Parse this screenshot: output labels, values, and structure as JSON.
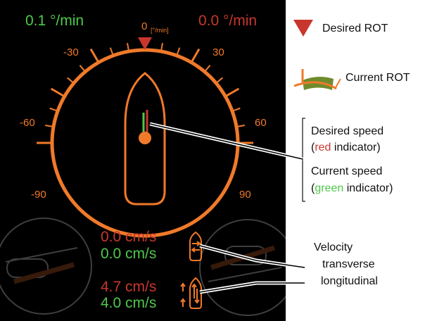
{
  "rot": {
    "current_value": "0.1 °/min",
    "desired_value": "0.0 °/min",
    "zero_label": "0",
    "unit_label": "[°/min]",
    "scale_labels": {
      "m30": "-30",
      "p30": "30",
      "m60": "-60",
      "p60": "60",
      "m90": "-90",
      "p90": "90"
    }
  },
  "velocity": {
    "transverse_desired": "0.0 cm/s",
    "transverse_current": "0.0 cm/s",
    "longitudinal_desired": "4.7 cm/s",
    "longitudinal_current": "4.0 cm/s"
  },
  "legend": {
    "desired_rot": "Desired ROT",
    "current_rot": "Current ROT",
    "desired_speed_line1": "Desired speed",
    "desired_speed_line2_pre": "(",
    "desired_speed_line2_color": "red",
    "desired_speed_line2_post": " indicator)",
    "current_speed_line1": "Current speed",
    "current_speed_line2_pre": "(",
    "current_speed_line2_color": "green",
    "current_speed_line2_post": " indicator)",
    "velocity_title": "Velocity",
    "transverse": "transverse",
    "longitudinal": "longitudinal"
  },
  "colors": {
    "background": "#000000",
    "accent_orange": "#f07a2a",
    "desired_red": "#c8372d",
    "current_green": "#4dc94a"
  }
}
